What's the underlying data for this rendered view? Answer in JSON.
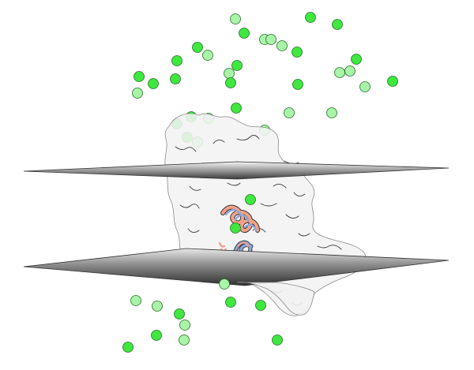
{
  "figure": {
    "type": "membrane-protein-simulation-snapshot",
    "background_color": "#ffffff",
    "membrane": {
      "plane_count": 2,
      "plane_gradient": [
        "#eeeeee",
        "#6e6e6e",
        "#2a2a2a"
      ],
      "plane_edge_color": "#333333"
    },
    "protein": {
      "representation": "surface",
      "surface_fill": "#f2f2f2",
      "surface_opacity": 0.85,
      "outline_color": "#555555",
      "ribbon_colors": [
        "#f2a28a",
        "#8fa6d8"
      ]
    },
    "ions": {
      "colors": {
        "bright": "#3ee83e",
        "pale": "#a8f5a8"
      },
      "outline_color": "#2b6b2b",
      "count_total": 60
    }
  }
}
